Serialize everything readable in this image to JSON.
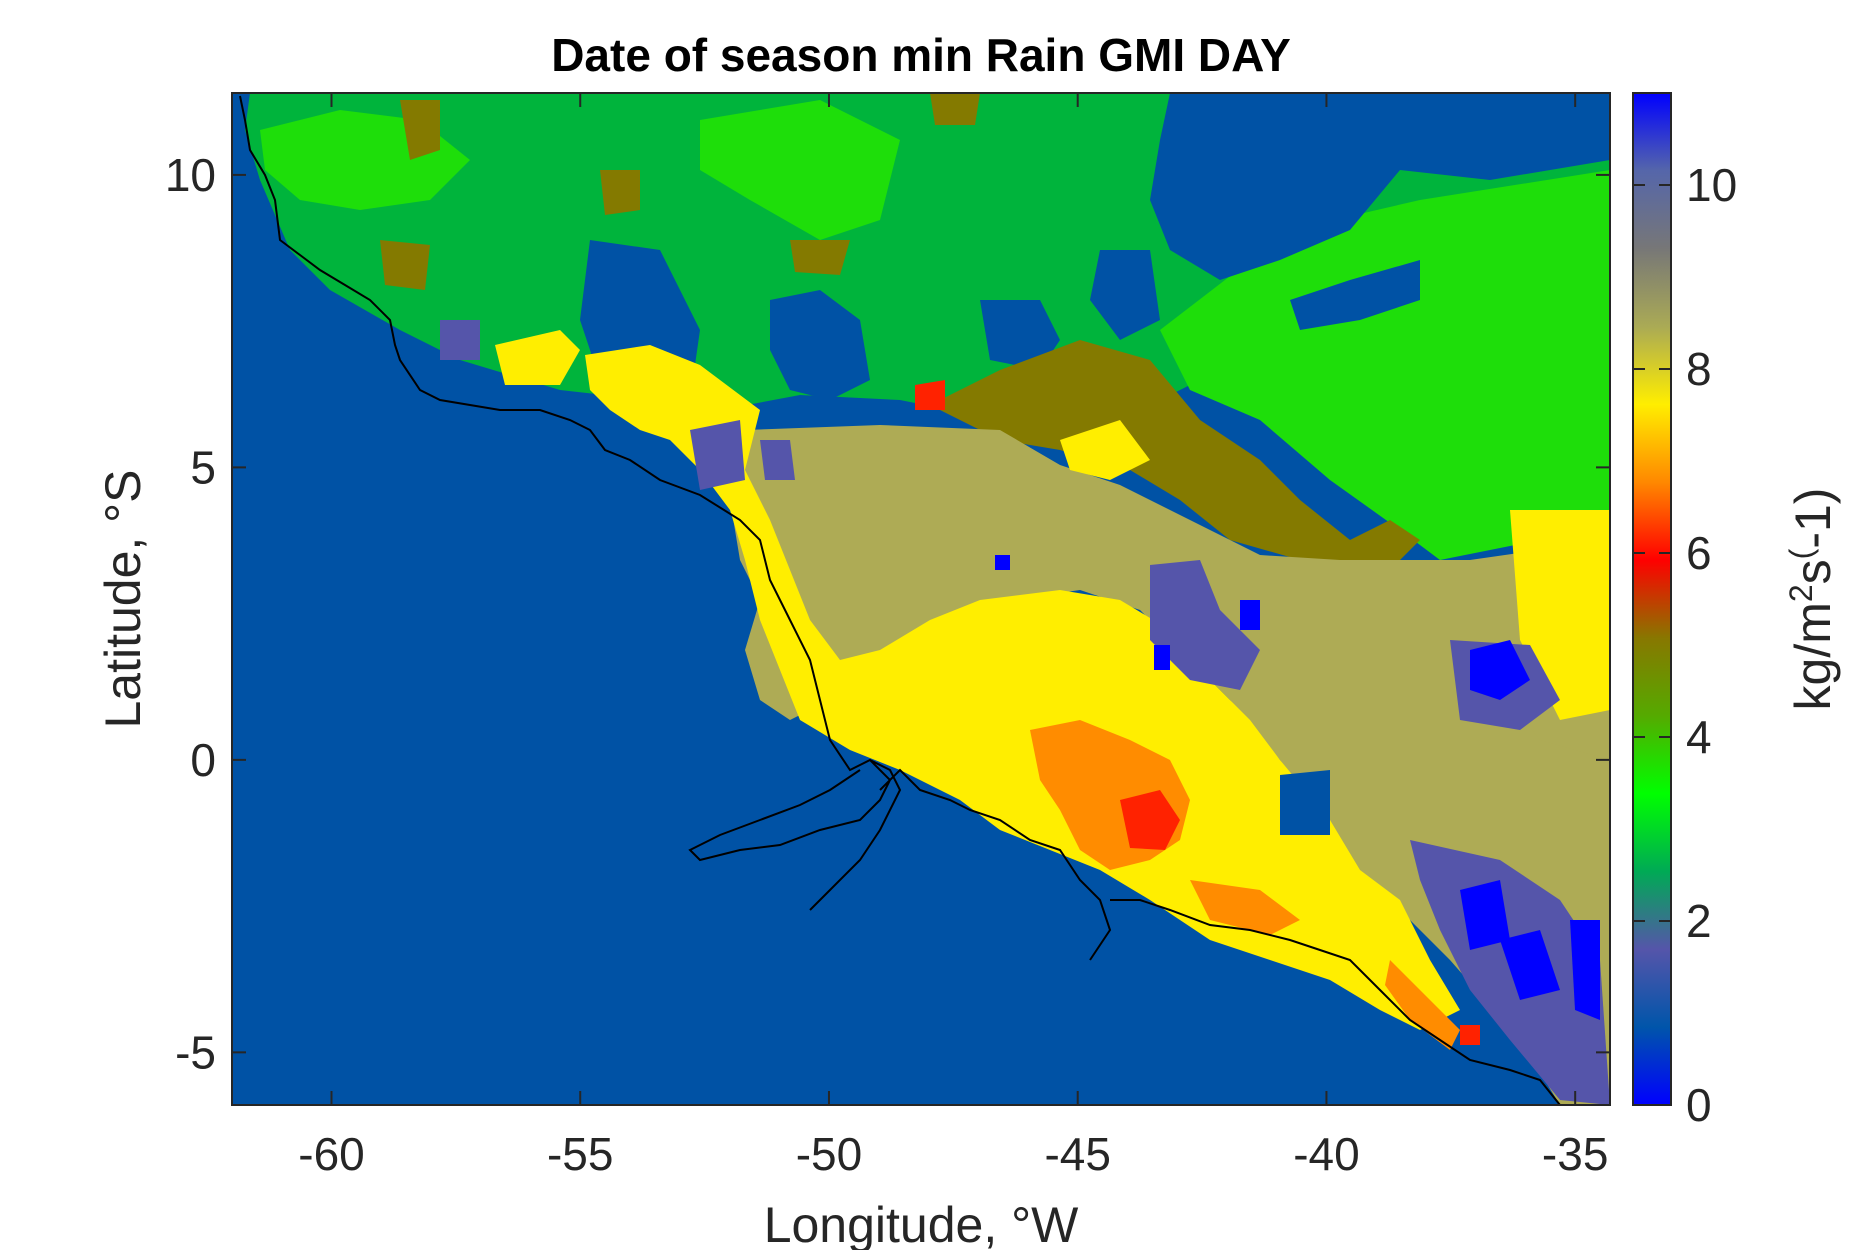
{
  "chart_data": {
    "type": "heatmap",
    "title": "Date of season min Rain GMI DAY",
    "xlabel": "Longitude, °W",
    "ylabel": "Latitude, °S",
    "xlim": [
      -62.0,
      -34.3
    ],
    "ylim": [
      -5.9,
      11.4
    ],
    "x_ticks": [
      -60,
      -55,
      -50,
      -45,
      -40,
      -35
    ],
    "x_tick_labels": [
      "-60",
      "-55",
      "-50",
      "-45",
      "-40",
      "-35"
    ],
    "y_ticks": [
      -5,
      0,
      5,
      10
    ],
    "y_tick_labels": [
      "-5",
      "0",
      "5",
      "10"
    ],
    "colorbar": {
      "label": "kg/m²s(-1)",
      "range": [
        0,
        11
      ],
      "ticks": [
        0,
        2,
        4,
        6,
        8,
        10
      ],
      "tick_labels": [
        "0",
        "2",
        "4",
        "6",
        "8",
        "10"
      ],
      "colors": [
        "#0000ff",
        "#0055aa",
        "#5555aa",
        "#00aa55",
        "#00ff00",
        "#55aa00",
        "#887700",
        "#ff0000",
        "#ff8800",
        "#ffee00",
        "#aaaa55",
        "#777777",
        "#5566aa",
        "#0000ff"
      ]
    },
    "ocean_value": 0.9,
    "regions": [
      {
        "name": "north-forest",
        "value": 3.0
      },
      {
        "name": "north-east-forest",
        "value": 2.5
      },
      {
        "name": "north-dark-patches",
        "value": 1.0
      },
      {
        "name": "central-olive-band",
        "value": 4.0
      },
      {
        "name": "central-khaki",
        "value": 9.0
      },
      {
        "name": "yellow-belt",
        "value": 8.0
      },
      {
        "name": "orange-core",
        "value": 7.2
      },
      {
        "name": "red-core",
        "value": 6.0
      },
      {
        "name": "purple-patches",
        "value": 10.0
      },
      {
        "name": "blue-patches",
        "value": 11.0
      }
    ]
  }
}
